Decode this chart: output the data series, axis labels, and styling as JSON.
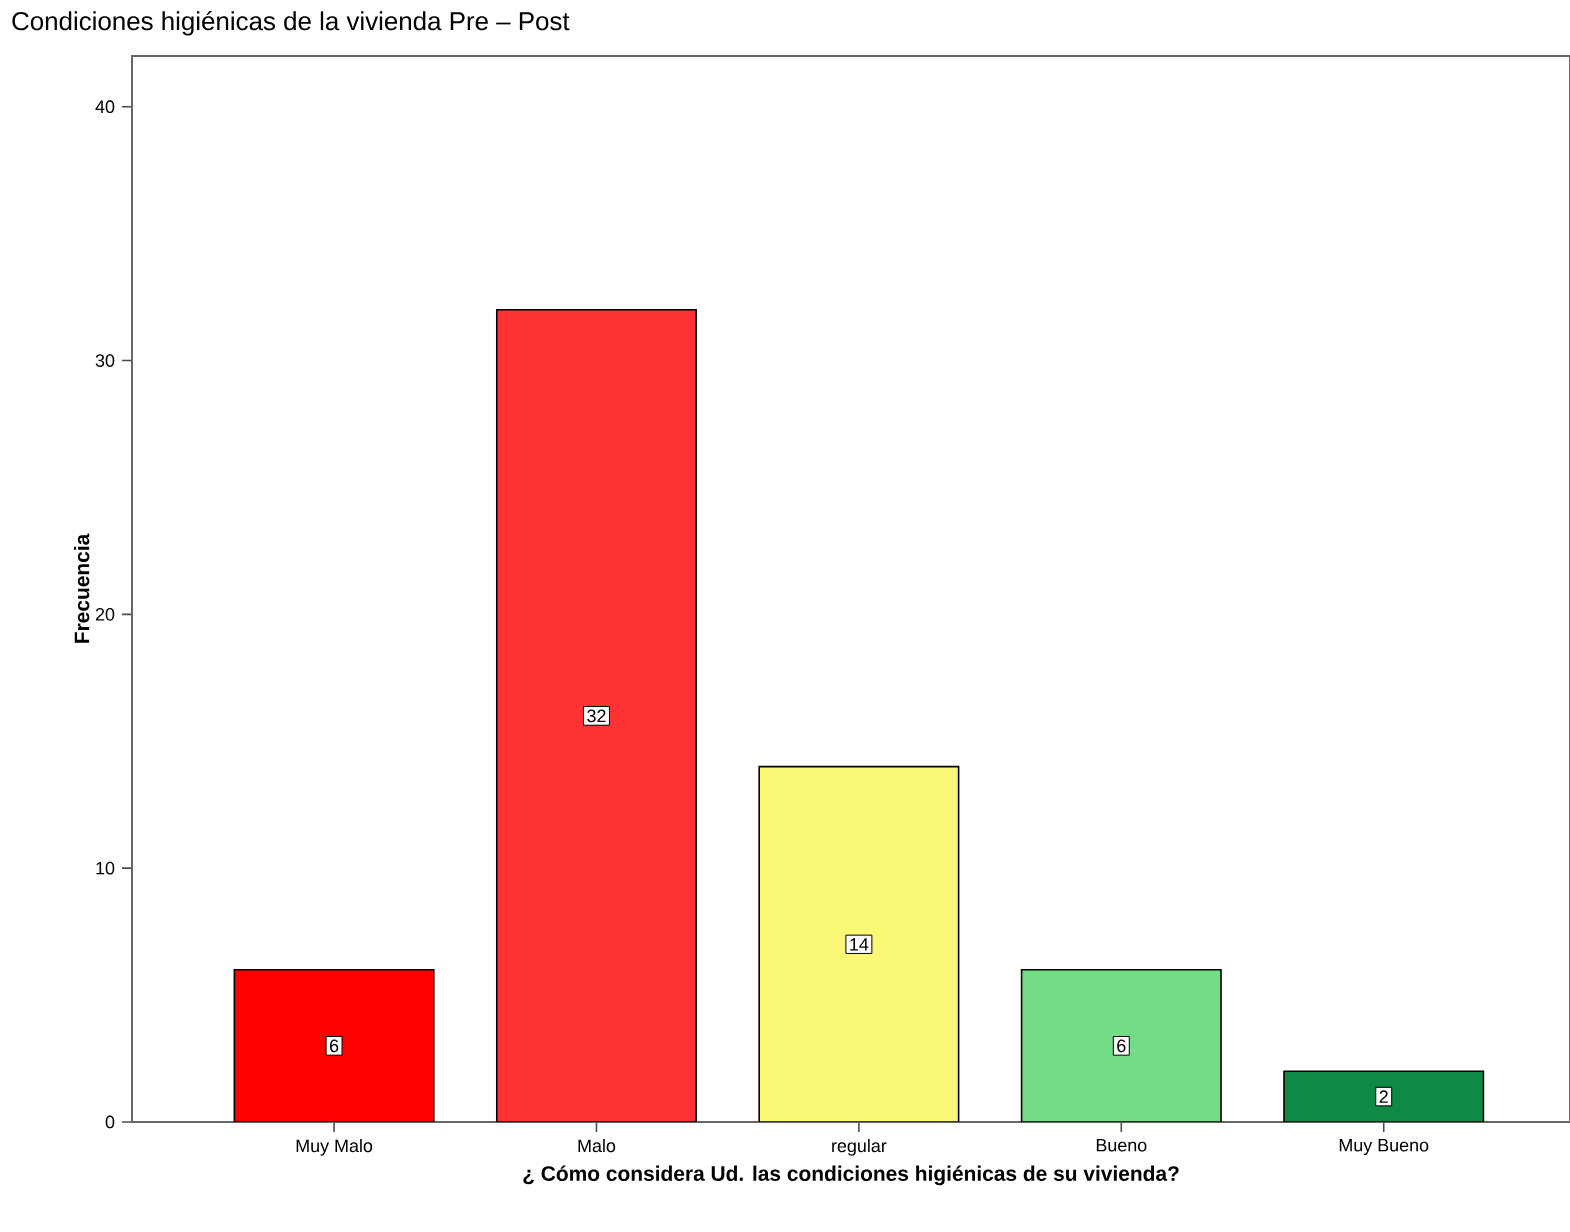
{
  "chart_data": {
    "type": "bar",
    "title": "Condiciones higiénicas de la vivienda Pre – Post",
    "xlabel": "¿ Cómo considera Ud. las condiciones higiénicas de su vivienda?",
    "ylabel": "Frecuencia",
    "categories": [
      "Muy Malo",
      "Malo",
      "regular",
      "Bueno",
      "Muy Bueno"
    ],
    "values": [
      6,
      32,
      14,
      6,
      2
    ],
    "colors": [
      "#ff0000",
      "#ff3333",
      "#fbf875",
      "#72dd86",
      "#0e8a44"
    ],
    "ylim": [
      0,
      42
    ],
    "yticks": [
      0,
      10,
      20,
      30,
      40
    ],
    "data_labels": true,
    "grid": false
  }
}
